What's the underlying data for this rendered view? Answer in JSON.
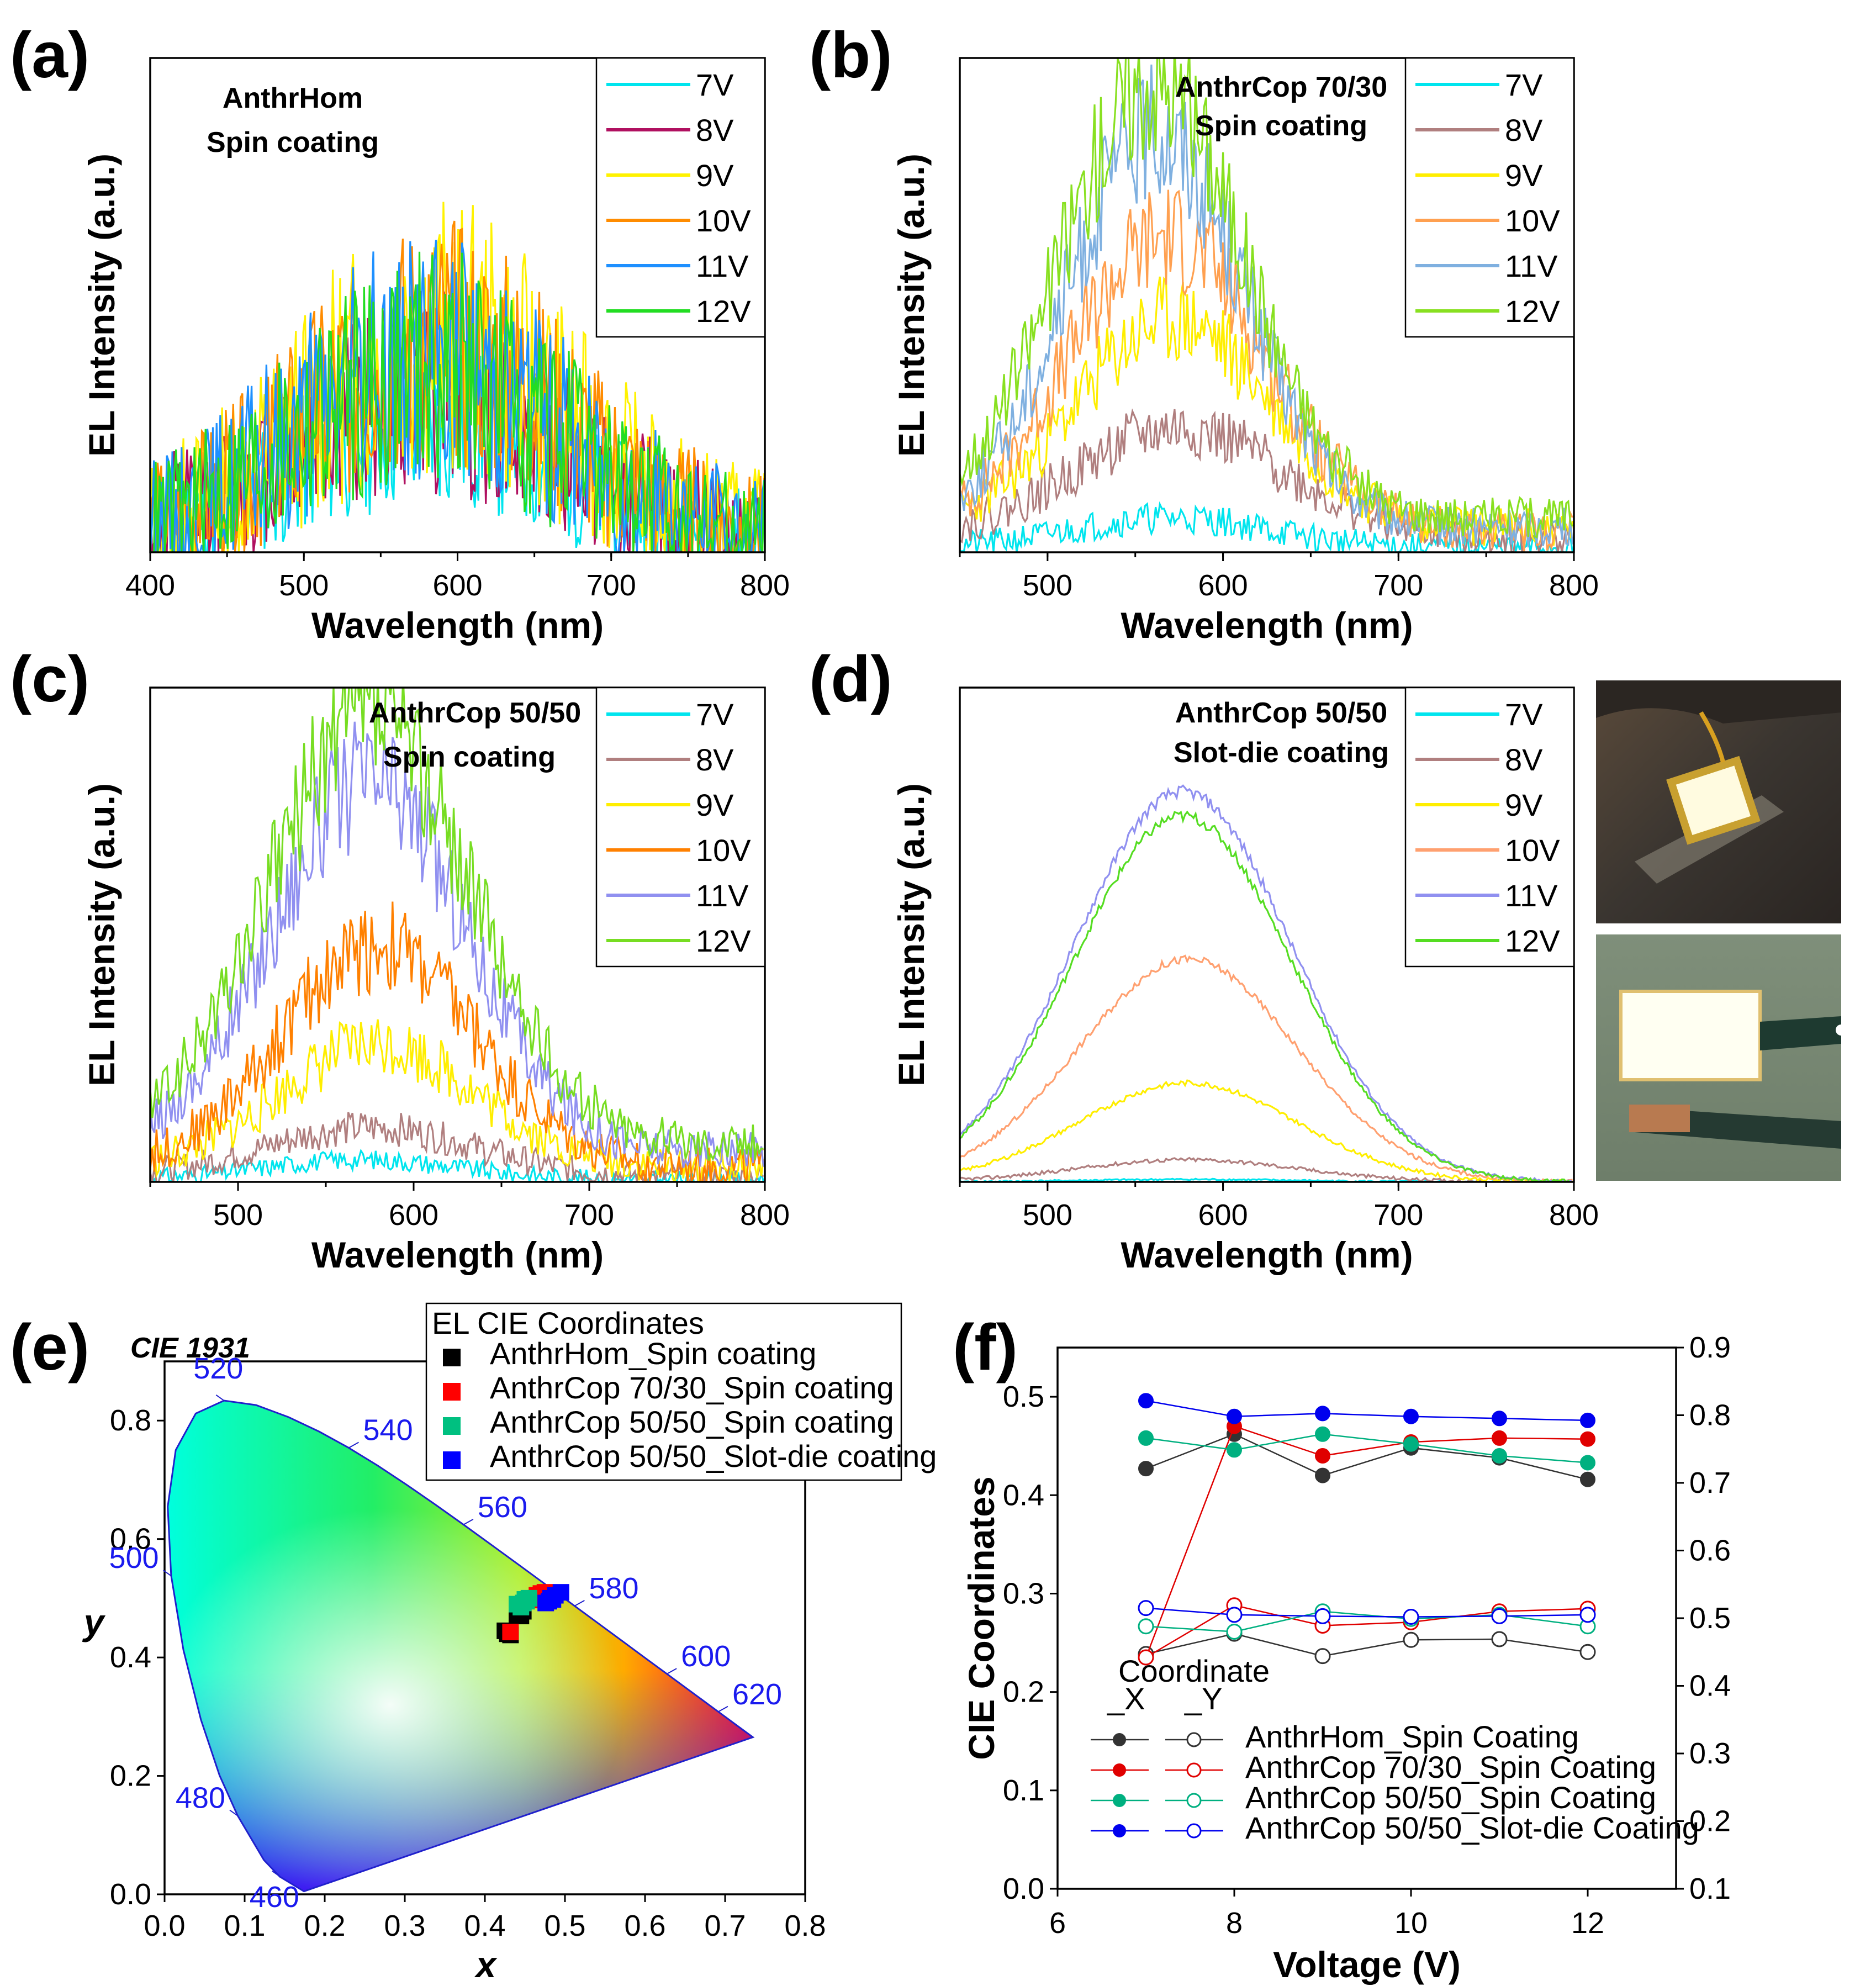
{
  "figure": {
    "panel_labels": [
      "(a)",
      "(b)",
      "(c)",
      "(d)",
      "(e)",
      "(f)"
    ]
  },
  "chart_data": [
    {
      "panel": "(a)",
      "type": "line",
      "title_lines": [
        "AnthrHom",
        "Spin coating"
      ],
      "xlabel": "Wavelength (nm)",
      "ylabel": "EL Intensity (a.u.)",
      "xlim": [
        400,
        800
      ],
      "xticks": [
        400,
        500,
        600,
        700,
        800
      ],
      "ylim": [
        0,
        1
      ],
      "x_start": 400,
      "x_end": 800,
      "series": [
        {
          "name": "7V",
          "color": "#00E5EE",
          "peak": 0.24,
          "center": 580,
          "width": 85,
          "noise": 0.22,
          "base": 0.02,
          "seed": 11
        },
        {
          "name": "8V",
          "color": "#B01060",
          "peak": 0.3,
          "center": 580,
          "width": 85,
          "noise": 0.25,
          "base": 0.03,
          "seed": 12
        },
        {
          "name": "9V",
          "color": "#FFF200",
          "peak": 0.42,
          "center": 585,
          "width": 85,
          "noise": 0.28,
          "base": 0.02,
          "seed": 13
        },
        {
          "name": "10V",
          "color": "#FF8C00",
          "peak": 0.4,
          "center": 585,
          "width": 85,
          "noise": 0.26,
          "base": 0.02,
          "seed": 14
        },
        {
          "name": "11V",
          "color": "#1E90FF",
          "peak": 0.38,
          "center": 580,
          "width": 85,
          "noise": 0.26,
          "base": 0.02,
          "seed": 15
        },
        {
          "name": "12V",
          "color": "#22DD22",
          "peak": 0.36,
          "center": 580,
          "width": 85,
          "noise": 0.26,
          "base": 0.02,
          "seed": 16
        }
      ]
    },
    {
      "panel": "(b)",
      "type": "line",
      "title_lines": [
        "AnthrCop 70/30",
        "Spin coating"
      ],
      "xlabel": "Wavelength (nm)",
      "ylabel": "EL Intensity (a.u.)",
      "xlim": [
        450,
        800
      ],
      "xticks": [
        500,
        600,
        700,
        800
      ],
      "ylim": [
        0,
        1
      ],
      "x_start": 450,
      "x_end": 800,
      "series": [
        {
          "name": "7V",
          "color": "#00E5EE",
          "peak": 0.06,
          "center": 570,
          "width": 55,
          "noise": 0.06,
          "base": 0.01,
          "seed": 21
        },
        {
          "name": "8V",
          "color": "#B07F7F",
          "peak": 0.22,
          "center": 575,
          "width": 60,
          "noise": 0.08,
          "base": 0.03,
          "seed": 22
        },
        {
          "name": "9V",
          "color": "#FFEE00",
          "peak": 0.42,
          "center": 572,
          "width": 55,
          "noise": 0.09,
          "base": 0.05,
          "seed": 23
        },
        {
          "name": "10V",
          "color": "#FFA050",
          "peak": 0.6,
          "center": 568,
          "width": 55,
          "noise": 0.09,
          "base": 0.04,
          "seed": 24
        },
        {
          "name": "11V",
          "color": "#7FB0E0",
          "peak": 0.8,
          "center": 562,
          "width": 50,
          "noise": 0.09,
          "base": 0.05,
          "seed": 25
        },
        {
          "name": "12V",
          "color": "#88E020",
          "peak": 0.88,
          "center": 560,
          "width": 52,
          "noise": 0.09,
          "base": 0.07,
          "seed": 26
        }
      ]
    },
    {
      "panel": "(c)",
      "type": "line",
      "title_lines": [
        "AnthrCop 50/50",
        "Spin coating"
      ],
      "xlabel": "Wavelength (nm)",
      "ylabel": "EL Intensity (a.u.)",
      "xlim": [
        450,
        800
      ],
      "xticks": [
        500,
        600,
        700,
        800
      ],
      "ylim": [
        0,
        1
      ],
      "x_start": 450,
      "x_end": 800,
      "series": [
        {
          "name": "7V",
          "color": "#00E5EE",
          "peak": 0.04,
          "center": 570,
          "width": 55,
          "noise": 0.04,
          "base": 0.005,
          "seed": 31
        },
        {
          "name": "8V",
          "color": "#B07F7F",
          "peak": 0.1,
          "center": 575,
          "width": 60,
          "noise": 0.06,
          "base": 0.01,
          "seed": 32
        },
        {
          "name": "9V",
          "color": "#FFEE00",
          "peak": 0.25,
          "center": 580,
          "width": 55,
          "noise": 0.08,
          "base": 0.03,
          "seed": 33
        },
        {
          "name": "10V",
          "color": "#FF8000",
          "peak": 0.45,
          "center": 580,
          "width": 55,
          "noise": 0.09,
          "base": 0.03,
          "seed": 34
        },
        {
          "name": "11V",
          "color": "#9090F0",
          "peak": 0.75,
          "center": 575,
          "width": 55,
          "noise": 0.09,
          "base": 0.06,
          "seed": 35
        },
        {
          "name": "12V",
          "color": "#77DD22",
          "peak": 0.86,
          "center": 575,
          "width": 57,
          "noise": 0.09,
          "base": 0.08,
          "seed": 36
        }
      ]
    },
    {
      "panel": "(d)",
      "type": "line",
      "title_lines": [
        "AnthrCop 50/50",
        "Slot-die coating"
      ],
      "xlabel": "Wavelength (nm)",
      "ylabel": "EL Intensity (a.u.)",
      "xlim": [
        450,
        800
      ],
      "xticks": [
        500,
        600,
        700,
        800
      ],
      "ylim": [
        0,
        1
      ],
      "x_start": 450,
      "x_end": 800,
      "series": [
        {
          "name": "7V",
          "color": "#00E5EE",
          "peak": 0.005,
          "center": 580,
          "width": 60,
          "noise": 0.004,
          "base": 0.0,
          "seed": 41
        },
        {
          "name": "8V",
          "color": "#B07F7F",
          "peak": 0.045,
          "center": 580,
          "width": 62,
          "noise": 0.008,
          "base": 0.0,
          "seed": 42
        },
        {
          "name": "9V",
          "color": "#FFEE00",
          "peak": 0.2,
          "center": 580,
          "width": 62,
          "noise": 0.008,
          "base": 0.0,
          "seed": 43
        },
        {
          "name": "10V",
          "color": "#FFA070",
          "peak": 0.45,
          "center": 580,
          "width": 62,
          "noise": 0.008,
          "base": 0.0,
          "seed": 44
        },
        {
          "name": "11V",
          "color": "#9090F0",
          "peak": 0.79,
          "center": 577,
          "width": 62,
          "noise": 0.008,
          "base": 0.0,
          "seed": 45
        },
        {
          "name": "12V",
          "color": "#55DD22",
          "peak": 0.74,
          "center": 577,
          "width": 62,
          "noise": 0.008,
          "base": 0.0,
          "seed": 46
        }
      ]
    },
    {
      "panel": "(e)",
      "type": "scatter",
      "title": "CIE 1931",
      "xlabel": "x",
      "ylabel": "y",
      "xlim": [
        0,
        0.8
      ],
      "ylim": [
        0,
        0.9
      ],
      "xticks": [
        0.0,
        0.1,
        0.2,
        0.3,
        0.4,
        0.5,
        0.6,
        0.7,
        0.8
      ],
      "yticks": [
        0.0,
        0.2,
        0.4,
        0.6,
        0.8
      ],
      "legend_title": "EL CIE Coordinates",
      "wavelength_labels": [
        {
          "nm": "460",
          "x": 0.144,
          "y": 0.03
        },
        {
          "nm": "480",
          "x": 0.091,
          "y": 0.133
        },
        {
          "nm": "500",
          "x": 0.008,
          "y": 0.538
        },
        {
          "nm": "520",
          "x": 0.074,
          "y": 0.834
        },
        {
          "nm": "540",
          "x": 0.23,
          "y": 0.754
        },
        {
          "nm": "560",
          "x": 0.373,
          "y": 0.624
        },
        {
          "nm": "580",
          "x": 0.512,
          "y": 0.487
        },
        {
          "nm": "600",
          "x": 0.627,
          "y": 0.372
        },
        {
          "nm": "620",
          "x": 0.691,
          "y": 0.308
        }
      ],
      "series": [
        {
          "name": "AnthrHom_Spin coating",
          "color": "#000000",
          "points": [
            [
              0.425,
              0.445
            ],
            [
              0.428,
              0.44
            ],
            [
              0.432,
              0.438
            ],
            [
              0.445,
              0.47
            ],
            [
              0.448,
              0.478
            ],
            [
              0.44,
              0.472
            ]
          ]
        },
        {
          "name": "AnthrCop 70/30_Spin coating",
          "color": "#FF0000",
          "points": [
            [
              0.432,
              0.443
            ],
            [
              0.47,
              0.508
            ],
            [
              0.465,
              0.505
            ],
            [
              0.475,
              0.51
            ],
            [
              0.472,
              0.5
            ],
            [
              0.462,
              0.497
            ]
          ]
        },
        {
          "name": "AnthrCop 50/50_Spin coating",
          "color": "#00C080",
          "points": [
            [
              0.44,
              0.49
            ],
            [
              0.45,
              0.498
            ],
            [
              0.445,
              0.485
            ],
            [
              0.455,
              0.5
            ],
            [
              0.452,
              0.495
            ],
            [
              0.448,
              0.492
            ]
          ]
        },
        {
          "name": "AnthrCop 50/50_Slot-die coating",
          "color": "#0000FF",
          "points": [
            [
              0.495,
              0.51
            ],
            [
              0.482,
              0.5
            ],
            [
              0.488,
              0.505
            ],
            [
              0.485,
              0.498
            ],
            [
              0.48,
              0.495
            ],
            [
              0.476,
              0.492
            ]
          ]
        }
      ]
    },
    {
      "panel": "(f)",
      "type": "line",
      "xlabel": "Voltage (V)",
      "ylabel": "CIE  Coordinates",
      "xlim": [
        6,
        13
      ],
      "xticks": [
        6,
        8,
        10,
        12
      ],
      "ylim": [
        0,
        0.55
      ],
      "yticks": [
        0.0,
        0.1,
        0.2,
        0.3,
        0.4,
        0.5
      ],
      "y2lim": [
        0.1,
        0.9
      ],
      "y2ticks": [
        0.1,
        0.2,
        0.3,
        0.4,
        0.5,
        0.6,
        0.7,
        0.8,
        0.9
      ],
      "legend_title": "Coordinate",
      "legend_cols": [
        "_X",
        "_Y"
      ],
      "x": [
        7,
        8,
        9,
        10,
        11,
        12
      ],
      "series": [
        {
          "name": "AnthrHom_Spin Coating",
          "color": "#333333",
          "x_coord": [
            0.427,
            0.462,
            0.42,
            0.448,
            0.438,
            0.416
          ],
          "y_coord": [
            0.447,
            0.477,
            0.444,
            0.468,
            0.469,
            0.45
          ]
        },
        {
          "name": "AnthrCop 70/30_Spin Coating",
          "color": "#E00000",
          "x_coord": [
            0.235,
            0.47,
            0.44,
            0.454,
            0.458,
            0.457
          ],
          "y_coord": [
            0.442,
            0.519,
            0.489,
            0.494,
            0.51,
            0.514
          ]
        },
        {
          "name": "AnthrCop 50/50_Spin Coating",
          "color": "#00B080",
          "x_coord": [
            0.458,
            0.446,
            0.462,
            0.452,
            0.44,
            0.433
          ],
          "y_coord": [
            0.488,
            0.48,
            0.51,
            0.499,
            0.505,
            0.488
          ]
        },
        {
          "name": "AnthrCop 50/50_Slot-die Coating",
          "color": "#0000EE",
          "x_coord": [
            0.496,
            0.48,
            0.483,
            0.48,
            0.478,
            0.476
          ],
          "y_coord": [
            0.515,
            0.505,
            0.503,
            0.502,
            0.503,
            0.505
          ]
        }
      ]
    }
  ]
}
